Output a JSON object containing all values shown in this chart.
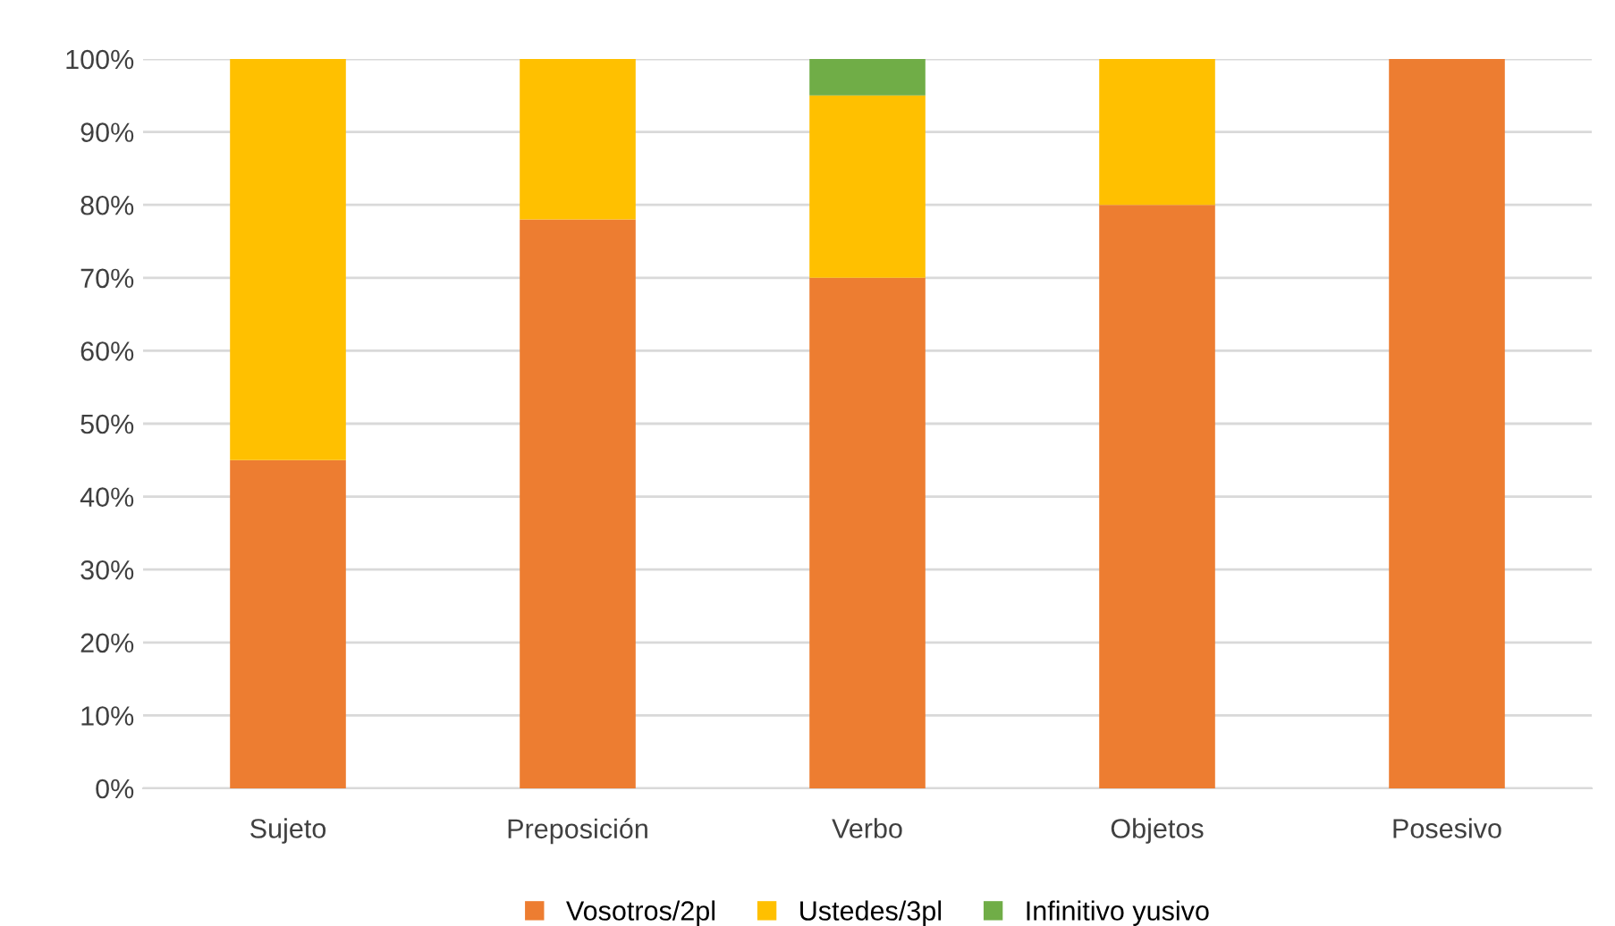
{
  "chart_data": {
    "type": "bar",
    "stacked": true,
    "categories": [
      "Sujeto",
      "Preposición",
      "Verbo",
      "Objetos",
      "Posesivo"
    ],
    "series": [
      {
        "name": "Vosotros/2pl",
        "color": "#ed7d31",
        "values": [
          45,
          78,
          70,
          80,
          100
        ]
      },
      {
        "name": "Ustedes/3pl",
        "color": "#ffc000",
        "values": [
          55,
          22,
          25,
          20,
          0
        ]
      },
      {
        "name": "Infinitivo yusivo",
        "color": "#70ad47",
        "values": [
          0,
          0,
          5,
          0,
          0
        ]
      }
    ],
    "ylim": [
      0,
      100
    ],
    "yticks": [
      {
        "value": 0,
        "label": "0%"
      },
      {
        "value": 10,
        "label": "10%"
      },
      {
        "value": 20,
        "label": "20%"
      },
      {
        "value": 30,
        "label": "30%"
      },
      {
        "value": 40,
        "label": "40%"
      },
      {
        "value": 50,
        "label": "50%"
      },
      {
        "value": 60,
        "label": "60%"
      },
      {
        "value": 70,
        "label": "70%"
      },
      {
        "value": 80,
        "label": "80%"
      },
      {
        "value": 90,
        "label": "90%"
      },
      {
        "value": 100,
        "label": "100%"
      }
    ],
    "grid": "y",
    "legend": "bottom"
  }
}
